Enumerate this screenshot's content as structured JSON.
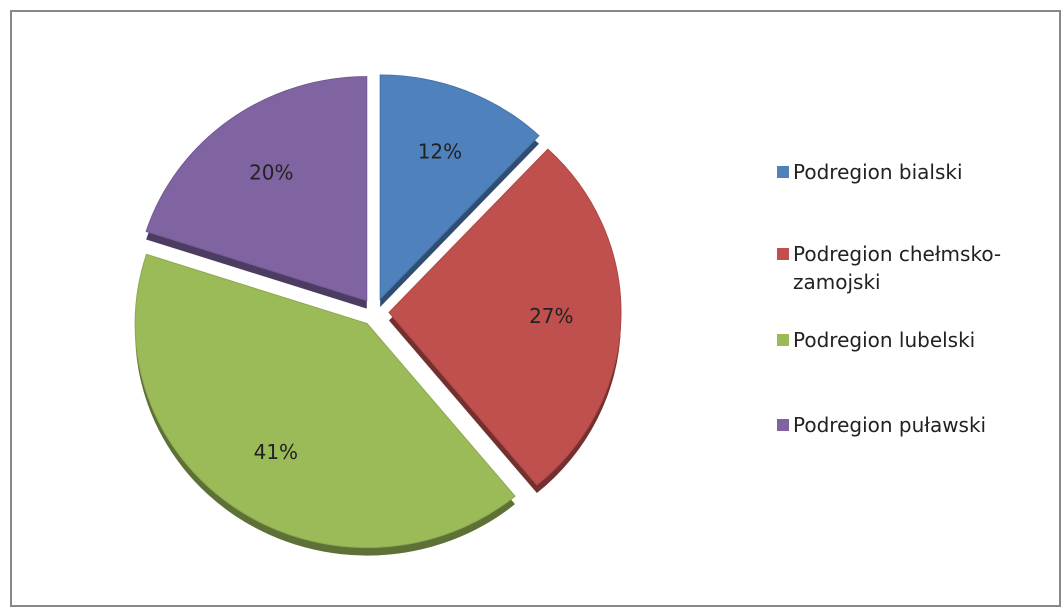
{
  "chart_data": {
    "type": "pie",
    "categories": [
      "Podregion bialski",
      "Podregion chełmsko-zamojski",
      "Podregion lubelski",
      "Podregion puławski"
    ],
    "values": [
      12,
      27,
      41,
      20
    ],
    "value_labels": [
      "12%",
      "27%",
      "41%",
      "20%"
    ],
    "colors": [
      "#4f81bd",
      "#c0504d",
      "#9bbb59",
      "#8064a2"
    ],
    "legend": "right"
  }
}
